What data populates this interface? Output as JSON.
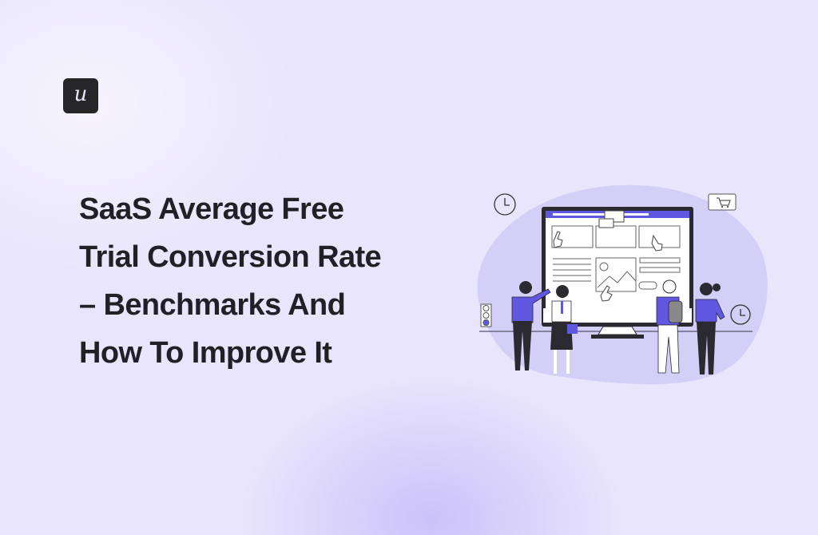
{
  "logo": {
    "letter": "u",
    "bg_color": "#262528"
  },
  "title": {
    "lines": [
      "SaaS Average Free",
      "Trial Conversion Rate",
      "– Benchmarks And",
      "How To Improve It"
    ]
  },
  "illustration": {
    "subject": "people-viewing-website-on-monitor",
    "accent_color": "#6058e0",
    "icons": [
      "clock-icon",
      "cart-icon",
      "traffic-light-icon",
      "clock-icon",
      "pointer-hand-icon",
      "chat-bubble-icon",
      "image-icon"
    ]
  },
  "colors": {
    "background": "#e9e5fc",
    "blob": "#d3cff7",
    "text": "#222027"
  }
}
